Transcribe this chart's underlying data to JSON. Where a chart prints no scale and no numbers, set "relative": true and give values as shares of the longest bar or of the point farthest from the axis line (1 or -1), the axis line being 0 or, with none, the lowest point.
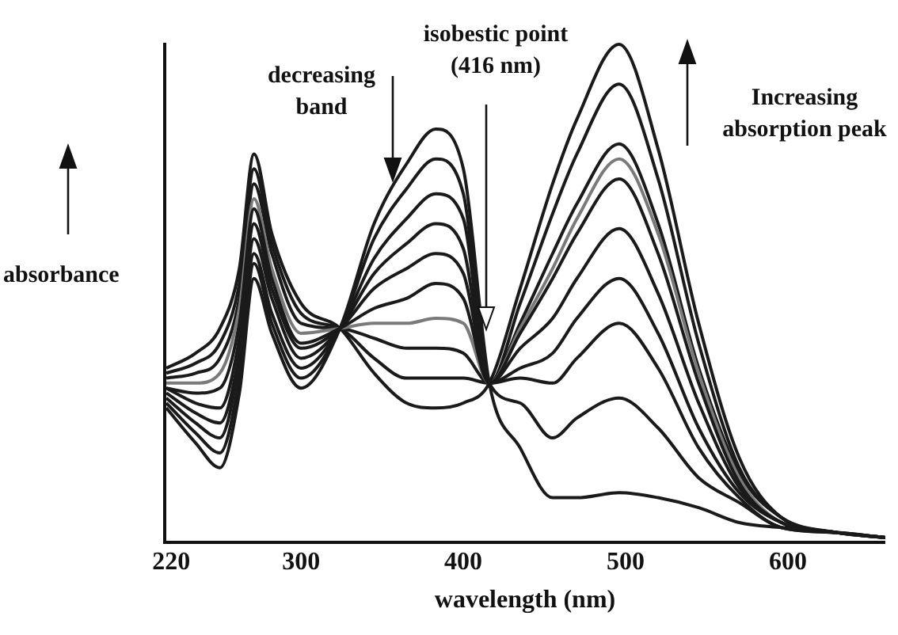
{
  "chart_data": {
    "type": "line",
    "relative": true,
    "xlabel": "wavelength (nm)",
    "ylabel": "absorbance",
    "xlim": [
      216,
      660
    ],
    "xticks": [
      220,
      300,
      400,
      500,
      600
    ],
    "grid": false,
    "legend": false,
    "marker": "none",
    "line_style": "solid",
    "x": [
      217,
      235,
      250,
      262,
      271,
      282,
      300,
      324,
      345,
      365,
      383,
      400,
      416,
      435,
      455,
      470,
      496,
      520,
      545,
      570,
      596,
      630,
      660
    ],
    "annotations": [
      "decreasing band",
      "isobestic point (416 nm)",
      "Increasing absorption peak"
    ],
    "series": [
      {
        "color": "#1a1a1a",
        "values": [
          0.27,
          0.2,
          0.15,
          0.3,
          0.53,
          0.42,
          0.31,
          0.43,
          0.64,
          0.76,
          0.83,
          0.75,
          0.32,
          0.19,
          0.09,
          0.09,
          0.1,
          0.09,
          0.07,
          0.04,
          0.03,
          0.02,
          0.01
        ]
      },
      {
        "color": "#1a1a1a",
        "values": [
          0.28,
          0.22,
          0.18,
          0.33,
          0.56,
          0.44,
          0.33,
          0.43,
          0.61,
          0.71,
          0.77,
          0.7,
          0.32,
          0.28,
          0.21,
          0.25,
          0.29,
          0.23,
          0.13,
          0.08,
          0.03,
          0.02,
          0.01
        ]
      },
      {
        "color": "#1a1a1a",
        "values": [
          0.29,
          0.24,
          0.21,
          0.36,
          0.58,
          0.46,
          0.35,
          0.43,
          0.57,
          0.65,
          0.7,
          0.65,
          0.32,
          0.33,
          0.32,
          0.37,
          0.44,
          0.35,
          0.19,
          0.09,
          0.03,
          0.02,
          0.01
        ]
      },
      {
        "color": "#1a1a1a",
        "values": [
          0.3,
          0.26,
          0.24,
          0.38,
          0.61,
          0.49,
          0.37,
          0.43,
          0.54,
          0.6,
          0.64,
          0.59,
          0.32,
          0.35,
          0.38,
          0.45,
          0.53,
          0.42,
          0.23,
          0.1,
          0.04,
          0.02,
          0.01
        ]
      },
      {
        "color": "#1a1a1a",
        "values": [
          0.31,
          0.28,
          0.27,
          0.41,
          0.64,
          0.51,
          0.39,
          0.43,
          0.51,
          0.55,
          0.58,
          0.54,
          0.32,
          0.39,
          0.45,
          0.53,
          0.63,
          0.5,
          0.28,
          0.11,
          0.04,
          0.02,
          0.01
        ]
      },
      {
        "color": "#1a1a1a",
        "values": [
          0.31,
          0.3,
          0.31,
          0.44,
          0.67,
          0.53,
          0.4,
          0.43,
          0.47,
          0.49,
          0.52,
          0.49,
          0.32,
          0.42,
          0.53,
          0.62,
          0.73,
          0.58,
          0.32,
          0.12,
          0.04,
          0.02,
          0.01
        ]
      },
      {
        "color": "#7a7a7a",
        "values": [
          0.32,
          0.32,
          0.34,
          0.47,
          0.69,
          0.55,
          0.42,
          0.43,
          0.44,
          0.44,
          0.45,
          0.44,
          0.32,
          0.43,
          0.55,
          0.65,
          0.77,
          0.62,
          0.34,
          0.13,
          0.04,
          0.02,
          0.01
        ]
      },
      {
        "color": "#1a1a1a",
        "values": [
          0.33,
          0.34,
          0.37,
          0.49,
          0.72,
          0.58,
          0.44,
          0.43,
          0.41,
          0.39,
          0.39,
          0.38,
          0.32,
          0.44,
          0.58,
          0.68,
          0.8,
          0.64,
          0.35,
          0.14,
          0.05,
          0.02,
          0.01
        ]
      },
      {
        "color": "#1a1a1a",
        "values": [
          0.34,
          0.36,
          0.4,
          0.52,
          0.75,
          0.6,
          0.46,
          0.43,
          0.37,
          0.33,
          0.33,
          0.33,
          0.32,
          0.48,
          0.66,
          0.78,
          0.92,
          0.73,
          0.4,
          0.15,
          0.05,
          0.02,
          0.01
        ]
      },
      {
        "color": "#1a1a1a",
        "values": [
          0.35,
          0.38,
          0.43,
          0.55,
          0.78,
          0.62,
          0.48,
          0.43,
          0.34,
          0.28,
          0.27,
          0.28,
          0.32,
          0.51,
          0.72,
          0.85,
          1.0,
          0.79,
          0.44,
          0.17,
          0.05,
          0.02,
          0.01
        ]
      }
    ]
  }
}
